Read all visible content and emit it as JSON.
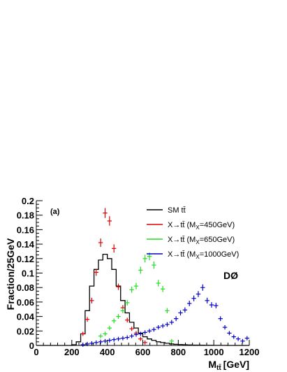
{
  "chart_data": {
    "type": "histogram",
    "panel_label": "(a)",
    "experiment_label": "DØ",
    "xlabel": "M",
    "xlabel_sub": "tt̄",
    "xlabel_unit": "[GeV]",
    "ylabel": "Fraction/25GeV",
    "xlim": [
      0,
      1200
    ],
    "ylim": [
      0,
      0.2
    ],
    "bin_width": 25,
    "x_ticks": [
      0,
      200,
      400,
      600,
      800,
      1000,
      1200
    ],
    "y_ticks": [
      0,
      0.02,
      0.04,
      0.06,
      0.08,
      0.1,
      0.12,
      0.14,
      0.16,
      0.18,
      0.2
    ],
    "x_tick_labels": [
      "0",
      "200",
      "400",
      "600",
      "800",
      "1000",
      "1200"
    ],
    "y_tick_labels": [
      "0",
      "0.02",
      "0.04",
      "0.06",
      "0.08",
      "0.1",
      "0.12",
      "0.14",
      "0.16",
      "0.18",
      "0.2"
    ],
    "grid": false,
    "legend_position": "top-right",
    "series": [
      {
        "name": "SM tt̄",
        "legend_label": "SM tt̄",
        "style": "step",
        "color": "#000000",
        "x": [
          200,
          225,
          250,
          275,
          300,
          325,
          350,
          375,
          400,
          425,
          450,
          475,
          500,
          525,
          550,
          575,
          600,
          625,
          650,
          675,
          700,
          725,
          750,
          775,
          800,
          825,
          850,
          875,
          900,
          925,
          950,
          975,
          1000,
          1025,
          1050,
          1075,
          1100,
          1125,
          1150,
          1175
        ],
        "values": [
          0.001,
          0.005,
          0.016,
          0.048,
          0.082,
          0.105,
          0.118,
          0.126,
          0.12,
          0.105,
          0.082,
          0.062,
          0.045,
          0.032,
          0.024,
          0.017,
          0.012,
          0.009,
          0.007,
          0.005,
          0.004,
          0.003,
          0.002,
          0.0015,
          0.0012,
          0.0009,
          0.0007,
          0.0005,
          0.0004,
          0.0003,
          0.0002,
          0.0002,
          0.0001,
          0.0001,
          0.0001,
          0.0,
          0.0,
          0.0,
          0.0,
          0.0
        ]
      },
      {
        "name": "X→tt̄ (MX=450GeV)",
        "legend_label": "X→tt̄ (M",
        "legend_sub": "X",
        "legend_tail": "=450GeV)",
        "style": "points",
        "color": "#dd0000",
        "x": [
          262.5,
          287.5,
          312.5,
          337.5,
          362.5,
          387.5,
          412.5,
          437.5,
          462.5,
          487.5,
          512.5,
          537.5,
          562.5,
          587.5,
          612.5
        ],
        "values": [
          0.016,
          0.036,
          0.062,
          0.101,
          0.142,
          0.183,
          0.172,
          0.134,
          0.081,
          0.052,
          0.035,
          0.023,
          0.017,
          0.009,
          0.004
        ]
      },
      {
        "name": "X→tt̄ (MX=650GeV)",
        "legend_label": "X→tt̄ (M",
        "legend_sub": "X",
        "legend_tail": "=650GeV)",
        "style": "points",
        "color": "#22dd22",
        "x": [
          362.5,
          387.5,
          412.5,
          437.5,
          462.5,
          487.5,
          512.5,
          537.5,
          562.5,
          587.5,
          612.5,
          637.5,
          662.5,
          687.5,
          712.5,
          737.5,
          762.5
        ],
        "values": [
          0.013,
          0.016,
          0.024,
          0.034,
          0.04,
          0.048,
          0.059,
          0.077,
          0.082,
          0.104,
          0.12,
          0.123,
          0.111,
          0.086,
          0.078,
          0.048,
          0.006
        ]
      },
      {
        "name": "X→tt̄ (MX=1000GeV)",
        "legend_label": "X→tt̄ (M",
        "legend_sub": "X",
        "legend_tail": "=1000GeV)",
        "style": "points",
        "color": "#0000cc",
        "x": [
          262.5,
          287.5,
          312.5,
          337.5,
          362.5,
          387.5,
          412.5,
          437.5,
          462.5,
          487.5,
          512.5,
          537.5,
          562.5,
          587.5,
          612.5,
          637.5,
          662.5,
          687.5,
          712.5,
          737.5,
          762.5,
          787.5,
          812.5,
          837.5,
          862.5,
          887.5,
          912.5,
          937.5,
          962.5,
          987.5,
          1012.5,
          1037.5,
          1062.5,
          1087.5,
          1112.5,
          1137.5,
          1162.5,
          1187.5
        ],
        "values": [
          0.001,
          0.002,
          0.003,
          0.004,
          0.005,
          0.006,
          0.007,
          0.008,
          0.009,
          0.01,
          0.011,
          0.013,
          0.015,
          0.016,
          0.018,
          0.02,
          0.022,
          0.025,
          0.027,
          0.029,
          0.032,
          0.037,
          0.045,
          0.049,
          0.058,
          0.065,
          0.071,
          0.08,
          0.062,
          0.056,
          0.055,
          0.037,
          0.025,
          0.017,
          0.012,
          0.009,
          0.006,
          0.01
        ]
      }
    ]
  }
}
